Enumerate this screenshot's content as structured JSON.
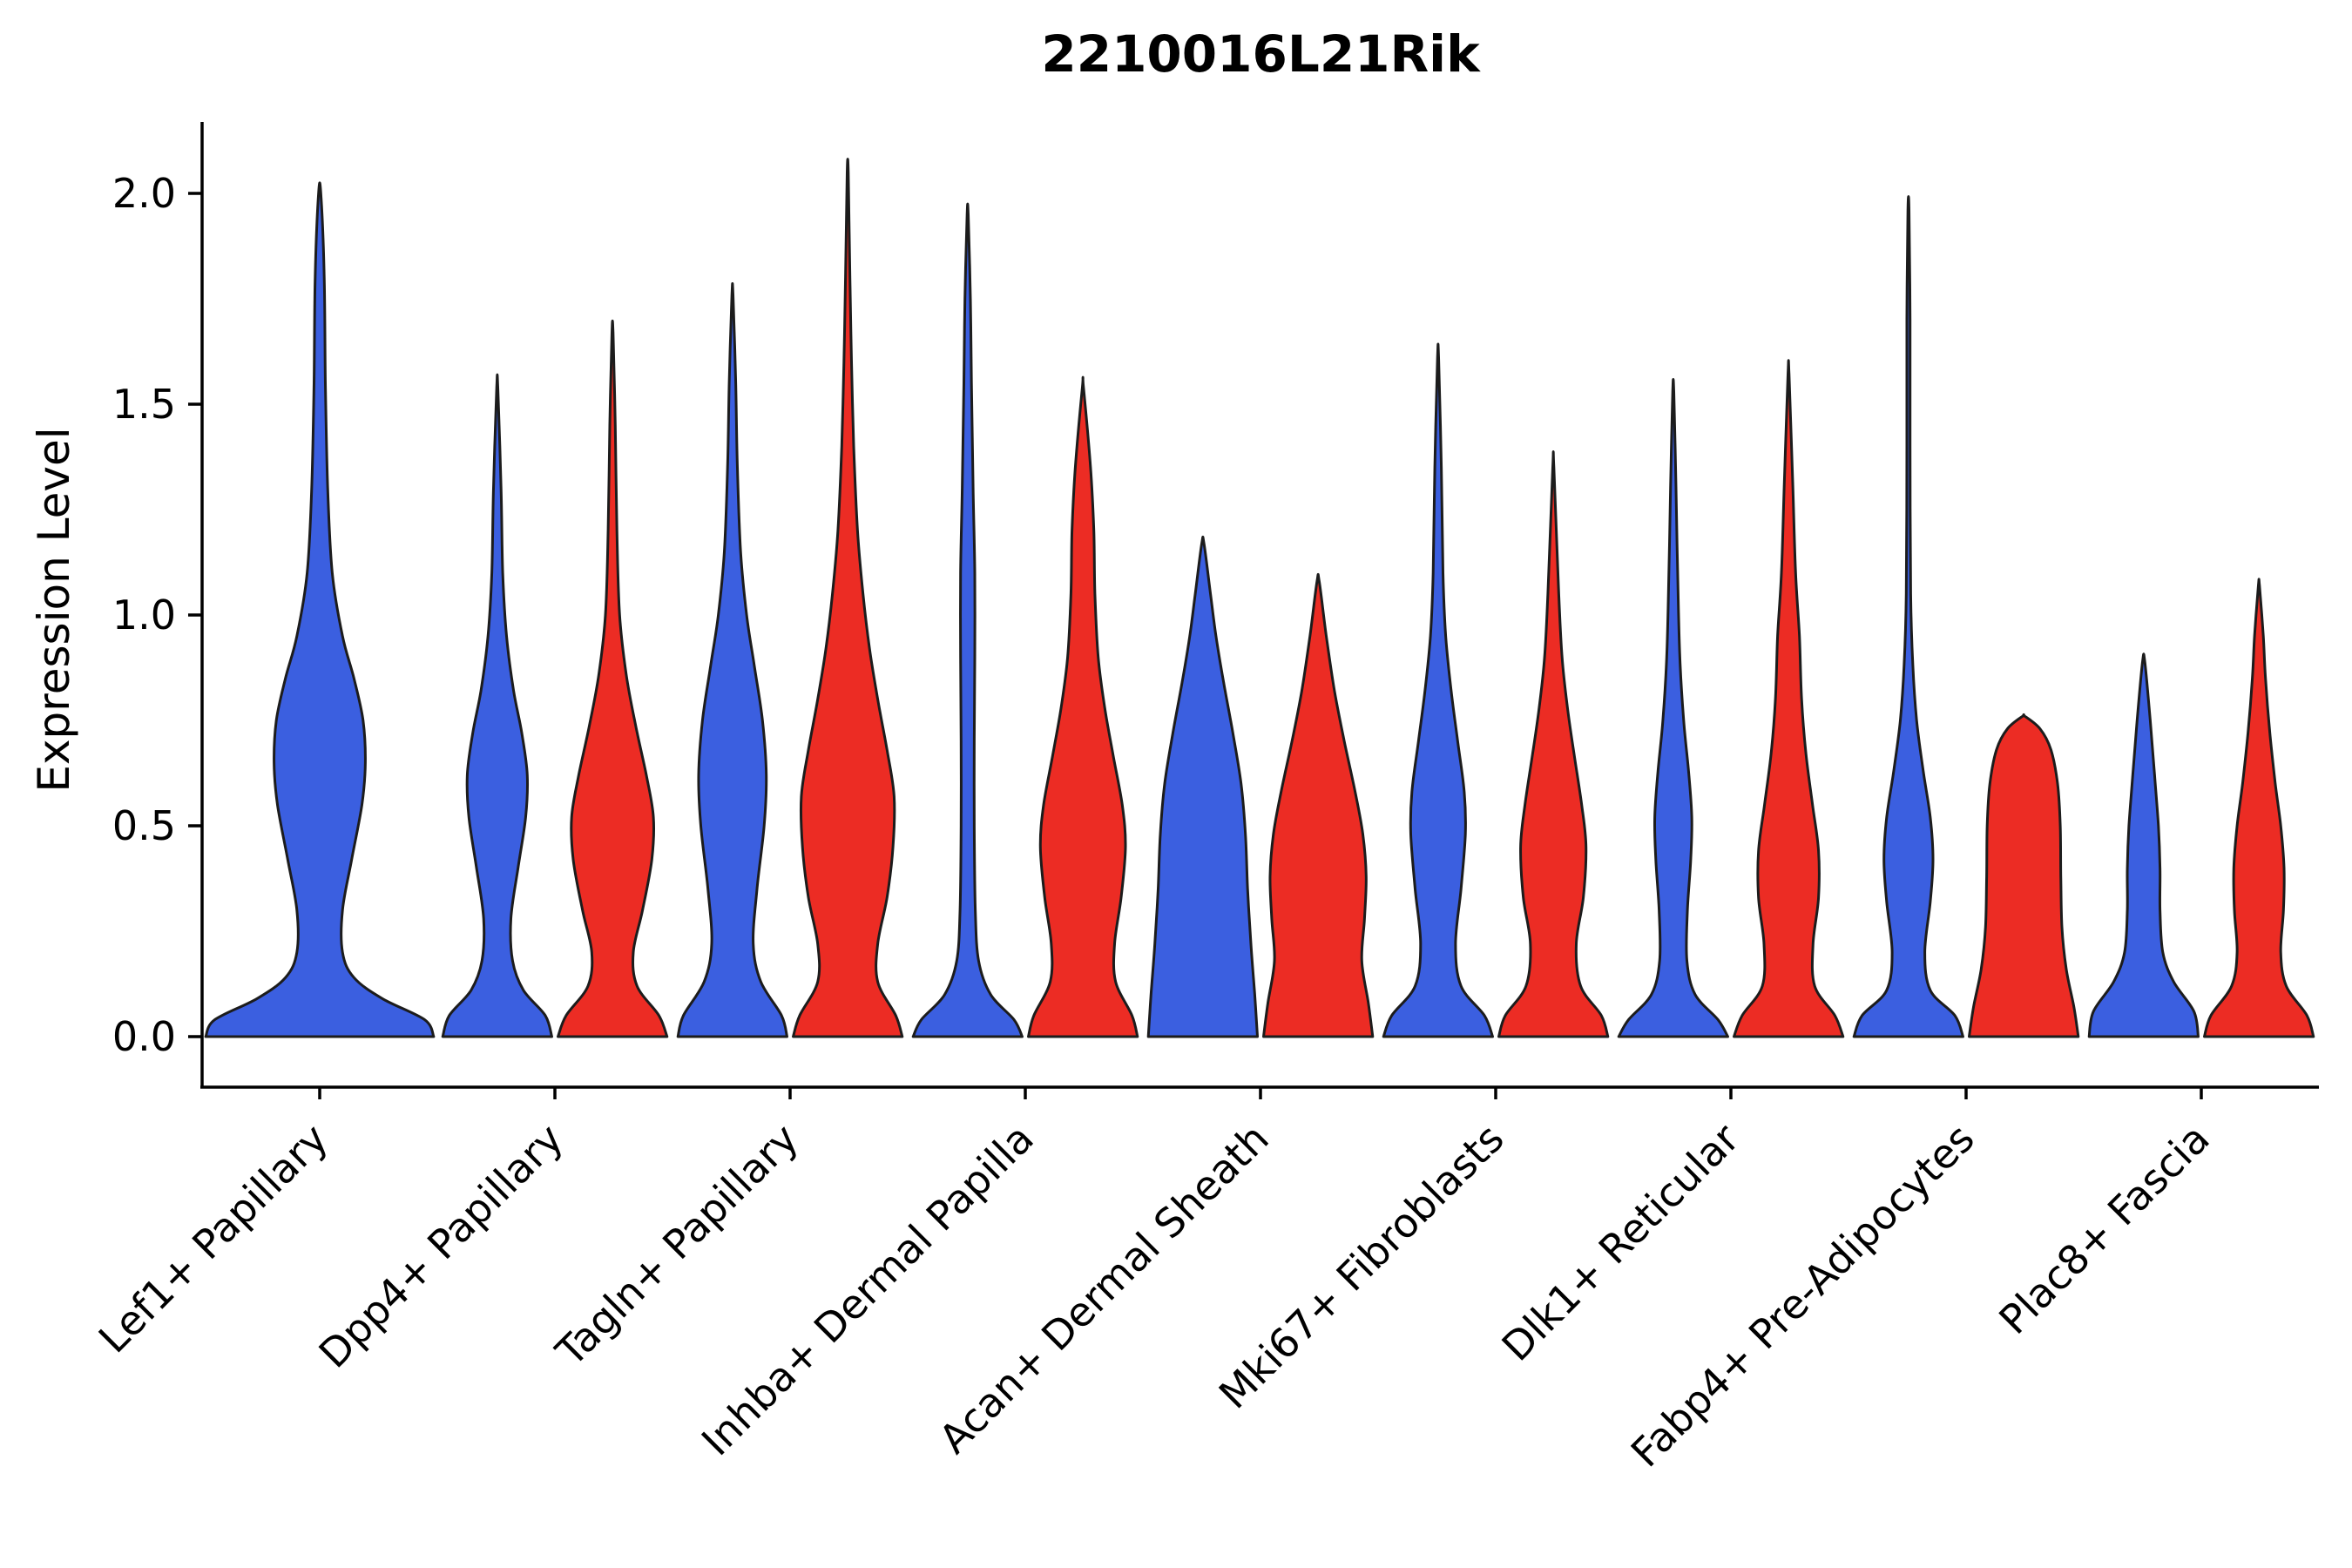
{
  "chart_data": {
    "type": "violin",
    "title": "2210016L21Rik",
    "ylabel": "Expression Level",
    "xlabel": "",
    "ylim": [
      -0.12,
      2.17
    ],
    "yticks": [
      "0.0",
      "0.5",
      "1.0",
      "1.5",
      "2.0"
    ],
    "grid": false,
    "legend": "none",
    "x_tick_rotation": 45,
    "series_colors": {
      "blue": "#3B5FE0",
      "red": "#EC2C24"
    },
    "edge_color": "#1c1c1c",
    "categories": [
      {
        "label": "Lef1+ Papillary",
        "violins": [
          {
            "group": "blue",
            "max": 2.0,
            "profile": [
              [
                0,
                1
              ],
              [
                0.04,
                0.92
              ],
              [
                0.09,
                0.55
              ],
              [
                0.14,
                0.3
              ],
              [
                0.2,
                0.2
              ],
              [
                0.3,
                0.2
              ],
              [
                0.42,
                0.28
              ],
              [
                0.55,
                0.37
              ],
              [
                0.65,
                0.4
              ],
              [
                0.75,
                0.38
              ],
              [
                0.85,
                0.3
              ],
              [
                0.95,
                0.2
              ],
              [
                1.1,
                0.11
              ],
              [
                1.3,
                0.07
              ],
              [
                1.55,
                0.05
              ],
              [
                1.8,
                0.04
              ],
              [
                2.0,
                0.01
              ]
            ]
          }
        ]
      },
      {
        "label": "Dpp4+ Papillary",
        "violins": [
          {
            "group": "blue",
            "max": 1.54,
            "profile": [
              [
                0,
                1
              ],
              [
                0.05,
                0.88
              ],
              [
                0.11,
                0.48
              ],
              [
                0.18,
                0.28
              ],
              [
                0.28,
                0.25
              ],
              [
                0.4,
                0.38
              ],
              [
                0.52,
                0.52
              ],
              [
                0.62,
                0.55
              ],
              [
                0.72,
                0.45
              ],
              [
                0.82,
                0.3
              ],
              [
                0.95,
                0.17
              ],
              [
                1.1,
                0.1
              ],
              [
                1.3,
                0.07
              ],
              [
                1.54,
                0.01
              ]
            ]
          },
          {
            "group": "red",
            "max": 1.67,
            "profile": [
              [
                0,
                1
              ],
              [
                0.05,
                0.85
              ],
              [
                0.12,
                0.45
              ],
              [
                0.2,
                0.38
              ],
              [
                0.3,
                0.55
              ],
              [
                0.42,
                0.72
              ],
              [
                0.52,
                0.75
              ],
              [
                0.62,
                0.62
              ],
              [
                0.74,
                0.42
              ],
              [
                0.86,
                0.25
              ],
              [
                1.0,
                0.13
              ],
              [
                1.2,
                0.08
              ],
              [
                1.45,
                0.05
              ],
              [
                1.67,
                0.01
              ]
            ]
          }
        ]
      },
      {
        "label": "Tagln+ Papillary",
        "violins": [
          {
            "group": "blue",
            "max": 1.76,
            "profile": [
              [
                0,
                1
              ],
              [
                0.05,
                0.9
              ],
              [
                0.13,
                0.52
              ],
              [
                0.22,
                0.38
              ],
              [
                0.35,
                0.45
              ],
              [
                0.5,
                0.58
              ],
              [
                0.62,
                0.62
              ],
              [
                0.75,
                0.55
              ],
              [
                0.88,
                0.4
              ],
              [
                1.0,
                0.26
              ],
              [
                1.15,
                0.15
              ],
              [
                1.35,
                0.09
              ],
              [
                1.55,
                0.06
              ],
              [
                1.76,
                0.01
              ]
            ]
          },
          {
            "group": "red",
            "max": 2.05,
            "profile": [
              [
                0,
                1
              ],
              [
                0.05,
                0.88
              ],
              [
                0.13,
                0.55
              ],
              [
                0.22,
                0.55
              ],
              [
                0.33,
                0.72
              ],
              [
                0.45,
                0.83
              ],
              [
                0.57,
                0.85
              ],
              [
                0.68,
                0.72
              ],
              [
                0.8,
                0.55
              ],
              [
                0.92,
                0.4
              ],
              [
                1.05,
                0.28
              ],
              [
                1.2,
                0.18
              ],
              [
                1.4,
                0.11
              ],
              [
                1.6,
                0.07
              ],
              [
                1.8,
                0.04
              ],
              [
                2.05,
                0.01
              ]
            ]
          }
        ]
      },
      {
        "label": "Inhba+ Dermal Papilla",
        "violins": [
          {
            "group": "blue",
            "max": 1.95,
            "profile": [
              [
                0,
                1
              ],
              [
                0.04,
                0.85
              ],
              [
                0.1,
                0.42
              ],
              [
                0.18,
                0.2
              ],
              [
                0.3,
                0.14
              ],
              [
                0.5,
                0.12
              ],
              [
                0.7,
                0.12
              ],
              [
                0.9,
                0.13
              ],
              [
                1.1,
                0.13
              ],
              [
                1.3,
                0.1
              ],
              [
                1.55,
                0.07
              ],
              [
                1.75,
                0.05
              ],
              [
                1.95,
                0.01
              ]
            ]
          },
          {
            "group": "red",
            "max": 1.54,
            "profile": [
              [
                0,
                1
              ],
              [
                0.05,
                0.9
              ],
              [
                0.13,
                0.6
              ],
              [
                0.22,
                0.58
              ],
              [
                0.33,
                0.7
              ],
              [
                0.45,
                0.78
              ],
              [
                0.55,
                0.72
              ],
              [
                0.67,
                0.55
              ],
              [
                0.78,
                0.4
              ],
              [
                0.9,
                0.28
              ],
              [
                1.05,
                0.22
              ],
              [
                1.2,
                0.2
              ],
              [
                1.35,
                0.14
              ],
              [
                1.54,
                0.01
              ]
            ]
          }
        ]
      },
      {
        "label": "Acan+ Dermal Sheath",
        "violins": [
          {
            "group": "blue",
            "max": 1.17,
            "profile": [
              [
                0,
                1
              ],
              [
                0.1,
                0.95
              ],
              [
                0.22,
                0.88
              ],
              [
                0.35,
                0.82
              ],
              [
                0.48,
                0.78
              ],
              [
                0.6,
                0.7
              ],
              [
                0.72,
                0.55
              ],
              [
                0.84,
                0.38
              ],
              [
                0.95,
                0.24
              ],
              [
                1.05,
                0.14
              ],
              [
                1.17,
                0.02
              ]
            ]
          },
          {
            "group": "red",
            "max": 1.08,
            "profile": [
              [
                0,
                1
              ],
              [
                0.08,
                0.92
              ],
              [
                0.18,
                0.8
              ],
              [
                0.28,
                0.85
              ],
              [
                0.38,
                0.88
              ],
              [
                0.48,
                0.82
              ],
              [
                0.58,
                0.68
              ],
              [
                0.7,
                0.48
              ],
              [
                0.82,
                0.3
              ],
              [
                0.95,
                0.15
              ],
              [
                1.08,
                0.02
              ]
            ]
          }
        ]
      },
      {
        "label": "Mki67+ Fibroblasts",
        "violins": [
          {
            "group": "blue",
            "max": 1.61,
            "profile": [
              [
                0,
                1
              ],
              [
                0.05,
                0.85
              ],
              [
                0.12,
                0.42
              ],
              [
                0.22,
                0.32
              ],
              [
                0.35,
                0.42
              ],
              [
                0.48,
                0.5
              ],
              [
                0.58,
                0.48
              ],
              [
                0.7,
                0.36
              ],
              [
                0.82,
                0.24
              ],
              [
                0.95,
                0.14
              ],
              [
                1.1,
                0.09
              ],
              [
                1.35,
                0.06
              ],
              [
                1.61,
                0.01
              ]
            ]
          },
          {
            "group": "red",
            "max": 1.35,
            "profile": [
              [
                0,
                1
              ],
              [
                0.05,
                0.88
              ],
              [
                0.12,
                0.5
              ],
              [
                0.22,
                0.42
              ],
              [
                0.33,
                0.55
              ],
              [
                0.45,
                0.6
              ],
              [
                0.55,
                0.52
              ],
              [
                0.67,
                0.38
              ],
              [
                0.78,
                0.26
              ],
              [
                0.9,
                0.16
              ],
              [
                1.05,
                0.1
              ],
              [
                1.35,
                0.01
              ]
            ]
          }
        ]
      },
      {
        "label": "Dlk1+ Reticular",
        "violins": [
          {
            "group": "blue",
            "max": 1.53,
            "profile": [
              [
                0,
                1
              ],
              [
                0.04,
                0.82
              ],
              [
                0.1,
                0.4
              ],
              [
                0.18,
                0.25
              ],
              [
                0.3,
                0.26
              ],
              [
                0.42,
                0.32
              ],
              [
                0.52,
                0.34
              ],
              [
                0.63,
                0.28
              ],
              [
                0.75,
                0.19
              ],
              [
                0.9,
                0.12
              ],
              [
                1.1,
                0.08
              ],
              [
                1.3,
                0.05
              ],
              [
                1.53,
                0.01
              ]
            ]
          },
          {
            "group": "red",
            "max": 1.57,
            "profile": [
              [
                0,
                1
              ],
              [
                0.05,
                0.85
              ],
              [
                0.12,
                0.48
              ],
              [
                0.22,
                0.45
              ],
              [
                0.33,
                0.55
              ],
              [
                0.44,
                0.55
              ],
              [
                0.55,
                0.44
              ],
              [
                0.67,
                0.32
              ],
              [
                0.8,
                0.24
              ],
              [
                0.95,
                0.2
              ],
              [
                1.1,
                0.13
              ],
              [
                1.3,
                0.08
              ],
              [
                1.57,
                0.01
              ]
            ]
          }
        ]
      },
      {
        "label": "Fabp4+ Pre-Adipocytes",
        "violins": [
          {
            "group": "blue",
            "max": 1.96,
            "profile": [
              [
                0,
                1
              ],
              [
                0.05,
                0.85
              ],
              [
                0.11,
                0.4
              ],
              [
                0.2,
                0.3
              ],
              [
                0.32,
                0.4
              ],
              [
                0.42,
                0.45
              ],
              [
                0.52,
                0.4
              ],
              [
                0.63,
                0.27
              ],
              [
                0.75,
                0.15
              ],
              [
                0.88,
                0.08
              ],
              [
                1.05,
                0.04
              ],
              [
                1.4,
                0.03
              ],
              [
                1.7,
                0.03
              ],
              [
                1.96,
                0.01
              ]
            ]
          },
          {
            "group": "red",
            "max": 0.76,
            "profile": [
              [
                0,
                1
              ],
              [
                0.07,
                0.92
              ],
              [
                0.16,
                0.78
              ],
              [
                0.26,
                0.7
              ],
              [
                0.38,
                0.68
              ],
              [
                0.5,
                0.67
              ],
              [
                0.6,
                0.62
              ],
              [
                0.68,
                0.5
              ],
              [
                0.73,
                0.3
              ],
              [
                0.76,
                0.02
              ]
            ]
          }
        ]
      },
      {
        "label": "Plac8+ Fascia",
        "violins": [
          {
            "group": "blue",
            "max": 0.89,
            "profile": [
              [
                0,
                1
              ],
              [
                0.06,
                0.92
              ],
              [
                0.13,
                0.55
              ],
              [
                0.2,
                0.35
              ],
              [
                0.3,
                0.3
              ],
              [
                0.4,
                0.3
              ],
              [
                0.5,
                0.27
              ],
              [
                0.62,
                0.2
              ],
              [
                0.75,
                0.12
              ],
              [
                0.89,
                0.02
              ]
            ]
          },
          {
            "group": "red",
            "max": 1.07,
            "profile": [
              [
                0,
                1
              ],
              [
                0.05,
                0.88
              ],
              [
                0.12,
                0.5
              ],
              [
                0.2,
                0.4
              ],
              [
                0.3,
                0.45
              ],
              [
                0.4,
                0.46
              ],
              [
                0.5,
                0.4
              ],
              [
                0.6,
                0.3
              ],
              [
                0.72,
                0.2
              ],
              [
                0.85,
                0.12
              ],
              [
                0.95,
                0.08
              ],
              [
                1.07,
                0.01
              ]
            ]
          }
        ]
      }
    ]
  }
}
